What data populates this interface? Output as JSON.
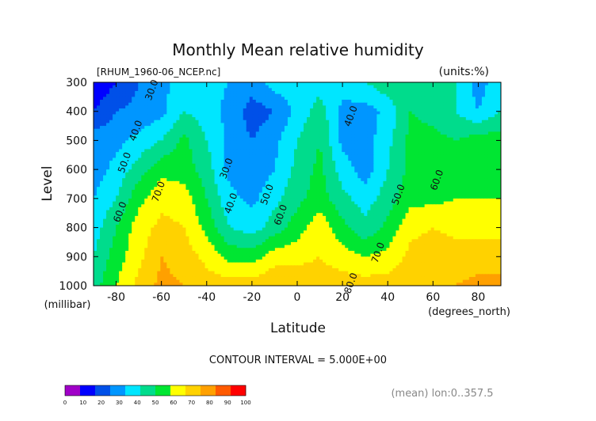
{
  "chart_data": {
    "type": "contour",
    "title": "Monthly Mean relative humidity",
    "file_label": "[RHUM_1960-06_NCEP.nc]",
    "units_label": "(units:%)",
    "xlabel": "Latitude",
    "x_unit_label": "(degrees_north)",
    "ylabel": "Level",
    "y_unit_label": "(millibar)",
    "xlim": [
      -90,
      90
    ],
    "ylim": [
      1000,
      300
    ],
    "x_ticks": [
      -80,
      -60,
      -40,
      -20,
      0,
      20,
      40,
      60,
      80
    ],
    "x_tick_labels": [
      "-80",
      "-60",
      "-40",
      "-20",
      "0",
      "20",
      "40",
      "60",
      "80"
    ],
    "y_ticks": [
      300,
      400,
      500,
      600,
      700,
      800,
      900,
      1000
    ],
    "y_tick_labels": [
      "300",
      "400",
      "500",
      "600",
      "700",
      "800",
      "900",
      "1000"
    ],
    "contour_interval_text": "CONTOUR INTERVAL = 5.000E+00",
    "footnote": "(mean) lon:0..357.5",
    "latitudes": [
      -90,
      -80,
      -70,
      -60,
      -50,
      -40,
      -30,
      -20,
      -10,
      0,
      10,
      20,
      30,
      40,
      50,
      60,
      70,
      80,
      90
    ],
    "levels": [
      300,
      400,
      500,
      600,
      700,
      800,
      900,
      1000
    ],
    "humidity": [
      [
        5,
        15,
        25,
        32,
        40,
        38,
        35,
        30,
        40,
        42,
        40,
        40,
        45,
        52,
        52,
        48,
        45,
        30,
        42
      ],
      [
        15,
        25,
        28,
        32,
        45,
        40,
        32,
        20,
        25,
        38,
        50,
        32,
        30,
        38,
        55,
        52,
        45,
        35,
        45
      ],
      [
        30,
        32,
        38,
        45,
        58,
        45,
        32,
        25,
        32,
        45,
        55,
        32,
        30,
        42,
        58,
        58,
        55,
        60,
        60
      ],
      [
        30,
        38,
        50,
        62,
        60,
        50,
        32,
        28,
        35,
        48,
        58,
        40,
        30,
        45,
        58,
        60,
        60,
        62,
        62
      ],
      [
        35,
        45,
        62,
        72,
        70,
        55,
        38,
        32,
        42,
        52,
        60,
        48,
        40,
        50,
        62,
        62,
        65,
        65,
        65
      ],
      [
        40,
        55,
        70,
        78,
        75,
        62,
        45,
        40,
        50,
        60,
        72,
        58,
        48,
        58,
        72,
        75,
        72,
        72,
        72
      ],
      [
        45,
        60,
        72,
        85,
        80,
        72,
        62,
        60,
        70,
        72,
        75,
        70,
        65,
        68,
        78,
        80,
        80,
        80,
        80
      ],
      [
        50,
        65,
        78,
        88,
        85,
        80,
        80,
        80,
        85,
        82,
        80,
        80,
        80,
        80,
        82,
        85,
        85,
        88,
        88
      ]
    ],
    "colorbar": {
      "ticks": [
        "0",
        "10",
        "20",
        "30",
        "40",
        "50",
        "60",
        "70",
        "80",
        "90",
        "100"
      ],
      "colors": [
        "#a000c8",
        "#0000ff",
        "#0050e8",
        "#0096ff",
        "#00e6ff",
        "#00dc8c",
        "#00e632",
        "#ffff00",
        "#ffd200",
        "#ffa000",
        "#ff5a00",
        "#ff0000"
      ]
    },
    "line_labels": [
      {
        "text": "30.0",
        "lat": -63,
        "lev": 330
      },
      {
        "text": "40.0",
        "lat": -70,
        "lev": 470
      },
      {
        "text": "50.0",
        "lat": -75,
        "lev": 580
      },
      {
        "text": "60.0",
        "lat": -77,
        "lev": 750
      },
      {
        "text": "70.0",
        "lat": -60,
        "lev": 680
      },
      {
        "text": "30.0",
        "lat": -30,
        "lev": 600
      },
      {
        "text": "40.0",
        "lat": -28,
        "lev": 720
      },
      {
        "text": "50.0",
        "lat": -12,
        "lev": 690
      },
      {
        "text": "60.0",
        "lat": -6,
        "lev": 760
      },
      {
        "text": "40.0",
        "lat": 25,
        "lev": 420
      },
      {
        "text": "50.0",
        "lat": 46,
        "lev": 690
      },
      {
        "text": "60.0",
        "lat": 63,
        "lev": 640
      },
      {
        "text": "70.0",
        "lat": 37,
        "lev": 890
      },
      {
        "text": "80.0",
        "lat": 25,
        "lev": 995
      }
    ]
  }
}
